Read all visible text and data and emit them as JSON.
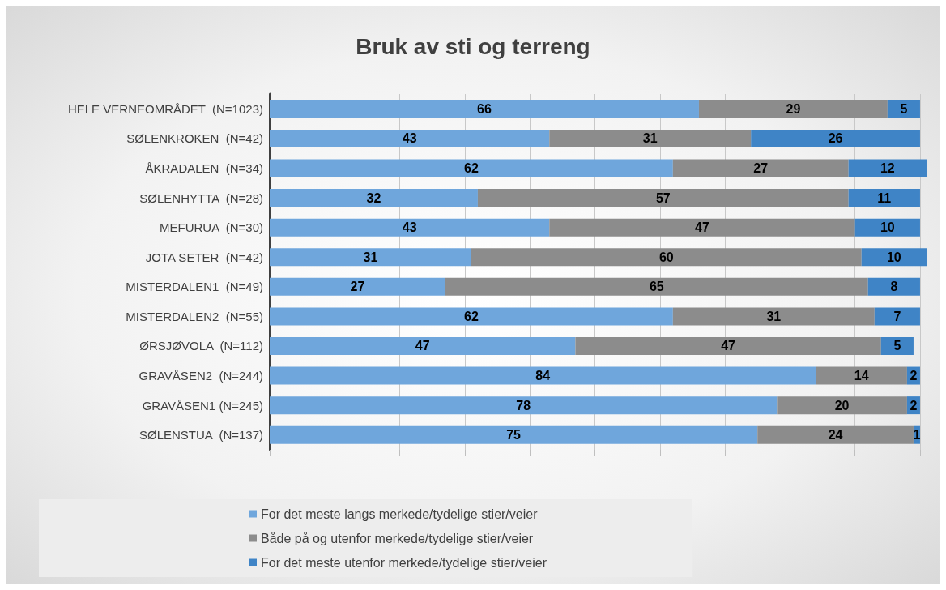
{
  "chart_data": {
    "type": "bar",
    "orientation": "horizontal",
    "stacked": true,
    "title": "Bruk av sti og terreng",
    "categories": [
      "HELE VERNEOMRÅDET  (N=1023)",
      "SØLENKROKEN  (N=42)",
      "ÅKRADALEN  (N=34)",
      "SØLENHYTTA  (N=28)",
      "MEFURUA  (N=30)",
      "JOTA SETER  (N=42)",
      "MISTERDALEN1  (N=49)",
      "MISTERDALEN2  (N=55)",
      "ØRSJØVOLA  (N=112)",
      "GRAVÅSEN2  (N=244)",
      "GRAVÅSEN1 (N=245)",
      "SØLENSTUA  (N=137)"
    ],
    "series": [
      {
        "name": "For det meste langs merkede/tydelige stier/veier",
        "color": "#6fa6dc",
        "values": [
          66,
          43,
          62,
          32,
          43,
          31,
          27,
          62,
          47,
          84,
          78,
          75
        ]
      },
      {
        "name": "Både på og utenfor merkede/tydelige stier/veier",
        "color": "#8c8c8c",
        "values": [
          29,
          31,
          27,
          57,
          47,
          60,
          65,
          31,
          47,
          14,
          20,
          24
        ]
      },
      {
        "name": "For det meste utenfor merkede/tydelige stier/veier",
        "color": "#3f84c6",
        "values": [
          5,
          26,
          12,
          11,
          10,
          10,
          8,
          7,
          5,
          2,
          2,
          1
        ]
      }
    ],
    "xlim": [
      0,
      101
    ],
    "xticks": [
      {
        "value": 0,
        "label": null
      },
      {
        "value": 10,
        "label": null
      },
      {
        "value": 20,
        "label": null
      },
      {
        "value": 30,
        "label": null
      },
      {
        "value": 40,
        "label": null
      },
      {
        "value": 50,
        "label": null
      },
      {
        "value": 60,
        "label": null
      },
      {
        "value": 70,
        "label": null
      },
      {
        "value": 80,
        "label": null
      },
      {
        "value": 90,
        "label": null
      },
      {
        "value": 100,
        "label": null
      }
    ],
    "tick_labels": "y",
    "grid": "x",
    "legend": "bottom",
    "data_labels": true
  }
}
